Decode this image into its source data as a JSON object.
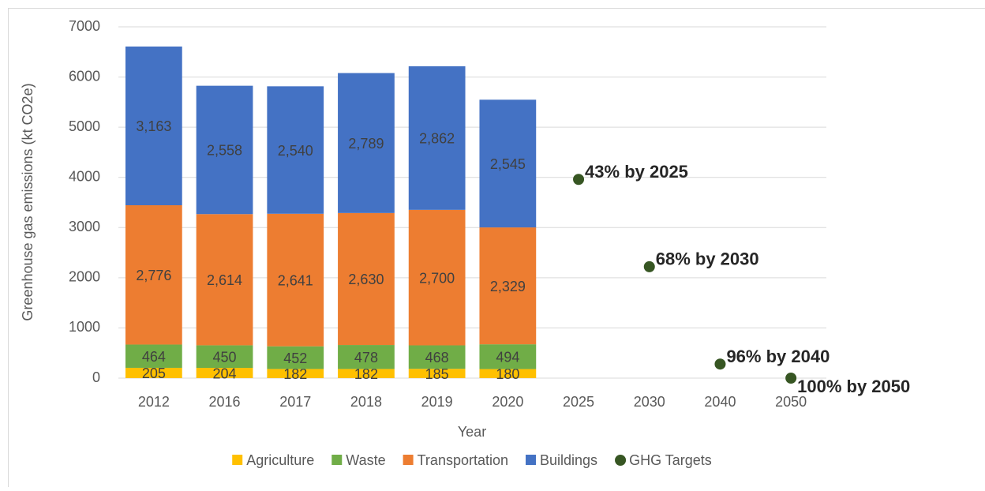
{
  "chart_data": {
    "type": "bar",
    "stacked": true,
    "y_label": "Greenhouse gas emissions (kt CO2e)",
    "x_label": "Year",
    "categories": [
      "2012",
      "2016",
      "2017",
      "2018",
      "2019",
      "2020",
      "2025",
      "2030",
      "2040",
      "2050"
    ],
    "series": [
      {
        "name": "Agriculture",
        "color": "#ffc000",
        "values": [
          205,
          204,
          182,
          182,
          185,
          180,
          null,
          null,
          null,
          null
        ],
        "value_labels": [
          "205",
          "204",
          "182",
          "182",
          "185",
          "180",
          null,
          null,
          null,
          null
        ]
      },
      {
        "name": "Waste",
        "color": "#70ad47",
        "values": [
          464,
          450,
          452,
          478,
          468,
          494,
          null,
          null,
          null,
          null
        ],
        "value_labels": [
          "464",
          "450",
          "452",
          "478",
          "468",
          "494",
          null,
          null,
          null,
          null
        ]
      },
      {
        "name": "Transportation",
        "color": "#ed7d31",
        "values": [
          2776,
          2614,
          2641,
          2630,
          2700,
          2329,
          null,
          null,
          null,
          null
        ],
        "value_labels": [
          "2,776",
          "2,614",
          "2,641",
          "2,630",
          "2,700",
          "2,329",
          null,
          null,
          null,
          null
        ]
      },
      {
        "name": "Buildings",
        "color": "#4472c4",
        "values": [
          3163,
          2558,
          2540,
          2789,
          2862,
          2545,
          null,
          null,
          null,
          null
        ],
        "value_labels": [
          "3,163",
          "2,558",
          "2,540",
          "2,789",
          "2,862",
          "2,545",
          null,
          null,
          null,
          null
        ]
      },
      {
        "name": "GHG Targets",
        "color": "#375623",
        "type": "scatter",
        "values": [
          null,
          null,
          null,
          null,
          null,
          null,
          3960,
          2220,
          280,
          0
        ],
        "labels": [
          null,
          null,
          null,
          null,
          null,
          null,
          "43% by 2025",
          "68% by 2030",
          "96% by 2040",
          "100% by 2050"
        ]
      }
    ],
    "ylim": [
      0,
      7000
    ],
    "yticks": [
      0,
      1000,
      2000,
      3000,
      4000,
      5000,
      6000,
      7000
    ],
    "grid": true,
    "legend": "bottom"
  }
}
